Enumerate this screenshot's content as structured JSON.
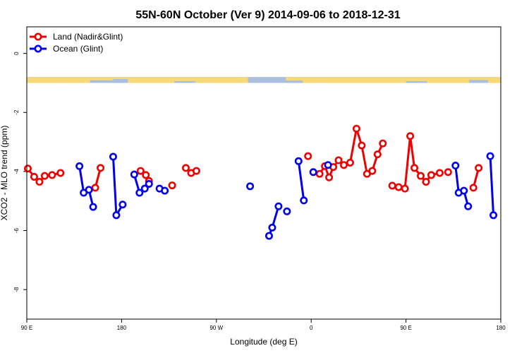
{
  "chart_data": {
    "type": "line",
    "title": "55N-60N October (Ver 9)   2014-09-06 to 2018-12-31",
    "xlabel": "Longitude (deg E)",
    "ylabel": "XCO2 - MLO trend (ppm)",
    "xlim": [
      90,
      540
    ],
    "ylim": [
      -9.0,
      0.9
    ],
    "x_ticks": [
      {
        "value": 90,
        "label": "90 E"
      },
      {
        "value": 180,
        "label": "180"
      },
      {
        "value": 270,
        "label": "90 W"
      },
      {
        "value": 360,
        "label": "0"
      },
      {
        "value": 450,
        "label": "90 E"
      },
      {
        "value": 540,
        "label": "180"
      }
    ],
    "y_ticks": [
      {
        "value": 0,
        "label": "0"
      },
      {
        "value": -2,
        "label": "-2"
      },
      {
        "value": -4,
        "label": "-4"
      },
      {
        "value": -6,
        "label": "-6"
      },
      {
        "value": -8,
        "label": "-8"
      }
    ],
    "legend_position": "top-left",
    "map_strip": {
      "y_top": -0.8,
      "y_bottom": -1.0,
      "land_color": "#f8d977",
      "ocean_color": "#aabfdf"
    },
    "series": [
      {
        "name": "Land (Nadir&Glint)",
        "color": "#ee0000",
        "segments": [
          [
            [
              91,
              -3.9
            ],
            [
              97,
              -4.18
            ],
            [
              102,
              -4.35
            ],
            [
              107,
              -4.15
            ],
            [
              114,
              -4.12
            ],
            [
              122,
              -4.05
            ]
          ],
          [
            [
              155,
              -4.55
            ],
            [
              160,
              -3.88
            ]
          ],
          [
            [
              198,
              -3.98
            ],
            [
              203,
              -4.12
            ],
            [
              206,
              -4.32
            ]
          ],
          [
            [
              228,
              -4.47
            ]
          ],
          [
            [
              241,
              -3.88
            ],
            [
              246,
              -4.05
            ],
            [
              251,
              -3.98
            ]
          ],
          [
            [
              357,
              -3.48
            ]
          ],
          [
            [
              368,
              -4.08
            ],
            [
              373,
              -3.82
            ],
            [
              377,
              -4.2
            ],
            [
              381,
              -3.85
            ],
            [
              386,
              -3.62
            ],
            [
              391,
              -3.78
            ],
            [
              397,
              -3.7
            ],
            [
              403,
              -2.55
            ],
            [
              408,
              -3.12
            ],
            [
              413,
              -4.08
            ],
            [
              418,
              -3.98
            ],
            [
              423,
              -3.42
            ],
            [
              428,
              -3.05
            ]
          ],
          [
            [
              437,
              -4.48
            ],
            [
              443,
              -4.53
            ],
            [
              449,
              -4.58
            ],
            [
              454,
              -2.8
            ],
            [
              458,
              -3.88
            ],
            [
              464,
              -4.15
            ],
            [
              469,
              -4.35
            ],
            [
              474,
              -4.12
            ],
            [
              482,
              -4.05
            ]
          ],
          [
            [
              490,
              -4.02
            ]
          ],
          [
            [
              514,
              -4.55
            ],
            [
              519,
              -3.88
            ]
          ]
        ]
      },
      {
        "name": "Ocean (Glint)",
        "color": "#0000ee",
        "segments": [
          [
            [
              140,
              -3.82
            ],
            [
              144,
              -4.72
            ],
            [
              149,
              -4.62
            ],
            [
              153,
              -5.2
            ]
          ],
          [
            [
              172,
              -3.5
            ],
            [
              175,
              -5.48
            ],
            [
              181,
              -5.12
            ]
          ],
          [
            [
              192,
              -4.1
            ],
            [
              197,
              -4.72
            ],
            [
              202,
              -4.58
            ],
            [
              206,
              -4.42
            ]
          ],
          [
            [
              216,
              -4.58
            ],
            [
              221,
              -4.65
            ]
          ],
          [
            [
              302,
              -4.5
            ]
          ],
          [
            [
              320,
              -6.18
            ],
            [
              323,
              -5.9
            ],
            [
              329,
              -5.18
            ]
          ],
          [
            [
              337,
              -5.35
            ]
          ],
          [
            [
              348,
              -3.65
            ],
            [
              353,
              -4.98
            ]
          ],
          [
            [
              362,
              -4.02
            ]
          ],
          [
            [
              376,
              -3.78
            ]
          ],
          [
            [
              497,
              -3.8
            ],
            [
              500,
              -4.72
            ],
            [
              505,
              -4.65
            ],
            [
              509,
              -5.18
            ]
          ],
          [
            [
              530,
              -3.48
            ],
            [
              533,
              -5.48
            ]
          ]
        ]
      }
    ]
  }
}
